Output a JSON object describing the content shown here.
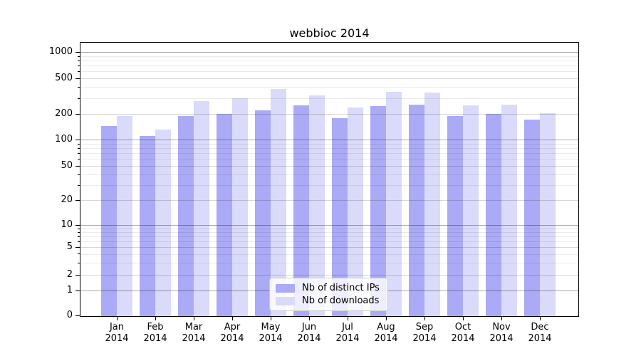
{
  "chart_data": {
    "type": "bar",
    "title": "webbioc 2014",
    "categories": [
      "Jan 2014",
      "Feb 2014",
      "Mar 2014",
      "Apr 2014",
      "May 2014",
      "Jun 2014",
      "Jul 2014",
      "Aug 2014",
      "Sep 2014",
      "Oct 2014",
      "Nov 2014",
      "Dec 2014"
    ],
    "series": [
      {
        "name": "Nb of distinct IPs",
        "color": "#aaaaf6",
        "values": [
          145,
          110,
          190,
          200,
          220,
          250,
          180,
          245,
          255,
          190,
          200,
          170
        ]
      },
      {
        "name": "Nb of downloads",
        "color": "#dadafa",
        "values": [
          190,
          130,
          280,
          300,
          380,
          320,
          235,
          355,
          350,
          250,
          255,
          205
        ]
      }
    ],
    "xlabel": "",
    "ylabel": "",
    "yscale": "symlog",
    "yticks": [
      0,
      1,
      2,
      5,
      10,
      20,
      50,
      100,
      200,
      500,
      1000
    ],
    "ylim": [
      0,
      1300
    ],
    "grid": true,
    "legend_position": "lower center"
  },
  "colors": {
    "bar_distinct_ips": "#aaaaf6",
    "bar_downloads": "#dadafa",
    "axis": "#000000",
    "grid_major": "#ababab",
    "grid_labeled": "#d6d6d6",
    "grid_minor": "#ebebeb",
    "legend_border": "#cccccc"
  }
}
